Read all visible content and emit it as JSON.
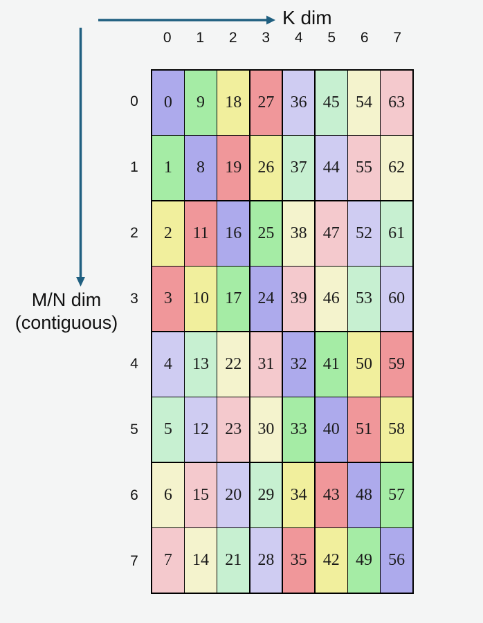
{
  "axes": {
    "k_label": "K dim",
    "mn_label_line1": "M/N dim",
    "mn_label_line2": "(contiguous)"
  },
  "colors": {
    "background": "#f4f5f5",
    "arrow": "#1f5f80",
    "grid_border": "#000000",
    "palette": [
      "#adaaec",
      "#a5eca5",
      "#f1ef9d",
      "#f0979a",
      "#cfccf2",
      "#c7f0d1",
      "#f4f3cd",
      "#f4c9cd"
    ]
  },
  "grid": {
    "col_headers": [
      "0",
      "1",
      "2",
      "3",
      "4",
      "5",
      "6",
      "7"
    ],
    "row_headers": [
      "0",
      "1",
      "2",
      "3",
      "4",
      "5",
      "6",
      "7"
    ],
    "values": [
      [
        0,
        9,
        18,
        27,
        36,
        45,
        54,
        63
      ],
      [
        1,
        8,
        19,
        26,
        37,
        44,
        55,
        62
      ],
      [
        2,
        11,
        16,
        25,
        38,
        47,
        52,
        61
      ],
      [
        3,
        10,
        17,
        24,
        39,
        46,
        53,
        60
      ],
      [
        4,
        13,
        22,
        31,
        32,
        41,
        50,
        59
      ],
      [
        5,
        12,
        23,
        30,
        33,
        40,
        51,
        58
      ],
      [
        6,
        15,
        20,
        29,
        34,
        43,
        48,
        57
      ],
      [
        7,
        14,
        21,
        28,
        35,
        42,
        49,
        56
      ]
    ],
    "color_indices": [
      [
        0,
        1,
        2,
        3,
        4,
        5,
        6,
        7
      ],
      [
        1,
        0,
        3,
        2,
        5,
        4,
        7,
        6
      ],
      [
        2,
        3,
        0,
        1,
        6,
        7,
        4,
        5
      ],
      [
        3,
        2,
        1,
        0,
        7,
        6,
        5,
        4
      ],
      [
        4,
        5,
        6,
        7,
        0,
        1,
        2,
        3
      ],
      [
        5,
        4,
        7,
        6,
        1,
        0,
        3,
        2
      ],
      [
        6,
        7,
        4,
        5,
        2,
        3,
        0,
        1
      ],
      [
        7,
        6,
        5,
        4,
        3,
        2,
        1,
        0
      ]
    ]
  }
}
